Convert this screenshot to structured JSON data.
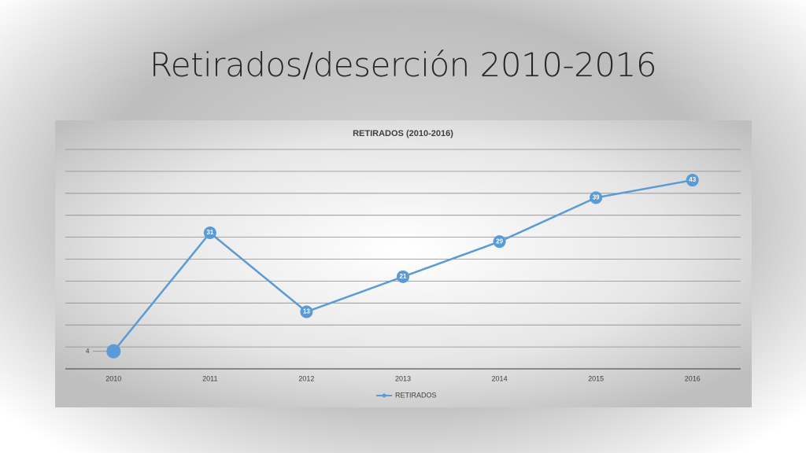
{
  "slide": {
    "title": "Retirados/deserción 2010-2016"
  },
  "chart_data": {
    "type": "line",
    "title": "RETIRADOS (2010-2016)",
    "categories": [
      "2010",
      "2011",
      "2012",
      "2013",
      "2014",
      "2015",
      "2016"
    ],
    "series": [
      {
        "name": "RETIRADOS",
        "color": "#5b9bd5",
        "values": [
          4,
          31,
          13,
          21,
          29,
          39,
          43
        ]
      }
    ],
    "ylim": [
      0,
      50
    ],
    "yticks": [
      0,
      5,
      10,
      15,
      20,
      25,
      30,
      35,
      40,
      45,
      50
    ],
    "show_ytick_labels": false,
    "grid": true,
    "data_labels": true,
    "legend": "bottom"
  }
}
